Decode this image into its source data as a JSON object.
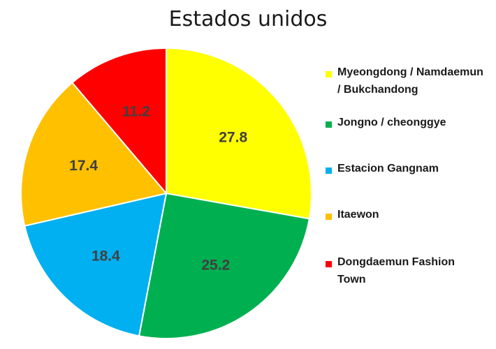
{
  "chart_data": {
    "type": "pie",
    "title": "Estados unidos",
    "legend_position": "right",
    "slices": [
      {
        "label": "Myeongdong / Namdaemun / Bukchandong",
        "value": 27.8,
        "color": "#FFFF00"
      },
      {
        "label": "Jongno / cheonggye",
        "value": 25.2,
        "color": "#00B050"
      },
      {
        "label": "Estacion Gangnam",
        "value": 18.4,
        "color": "#00B0F0"
      },
      {
        "label": "Itaewon",
        "value": 17.4,
        "color": "#FFC000"
      },
      {
        "label": "Dongdaemun Fashion Town",
        "value": 11.2,
        "color": "#FF0000"
      }
    ]
  }
}
